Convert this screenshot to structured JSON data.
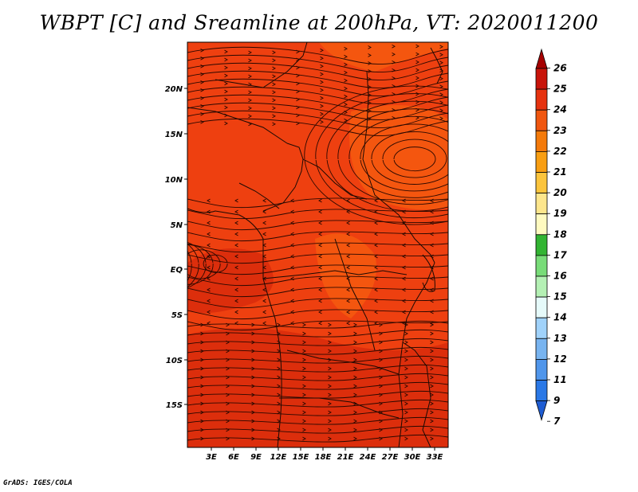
{
  "title": "WBPT [C] and Sreamline at 200hPa, VT: 2020011200",
  "credit": "GrADS: IGES/COLA",
  "map": {
    "lon_range": [
      0,
      35
    ],
    "lat_range": [
      -20,
      24.5
    ],
    "lon_ticks": [
      "3E",
      "6E",
      "9E",
      "12E",
      "15E",
      "18E",
      "21E",
      "24E",
      "27E",
      "30E",
      "33E"
    ],
    "lat_ticks": [
      "20N",
      "15N",
      "10N",
      "5N",
      "EQ",
      "5S",
      "10S",
      "15S"
    ],
    "fill_colors": {
      "dominant": "#ee4010",
      "darker": "#dc2e0c",
      "lighter": "#f4560f"
    }
  },
  "colorbar": {
    "labels": [
      "26",
      "25",
      "24",
      "23",
      "22",
      "21",
      "20",
      "19",
      "18",
      "17",
      "16",
      "15",
      "14",
      "13",
      "12",
      "11",
      "9",
      "7"
    ],
    "colors": [
      "#a50000",
      "#c8140a",
      "#e6320f",
      "#f0560f",
      "#f47a0a",
      "#f89e12",
      "#fbc43c",
      "#fde68c",
      "#fffac0",
      "#32b432",
      "#78dc78",
      "#b4f0b4",
      "#e6fafa",
      "#a0d2fa",
      "#78b4f0",
      "#5096eb",
      "#2a78e6",
      "#1e5cd2"
    ]
  }
}
